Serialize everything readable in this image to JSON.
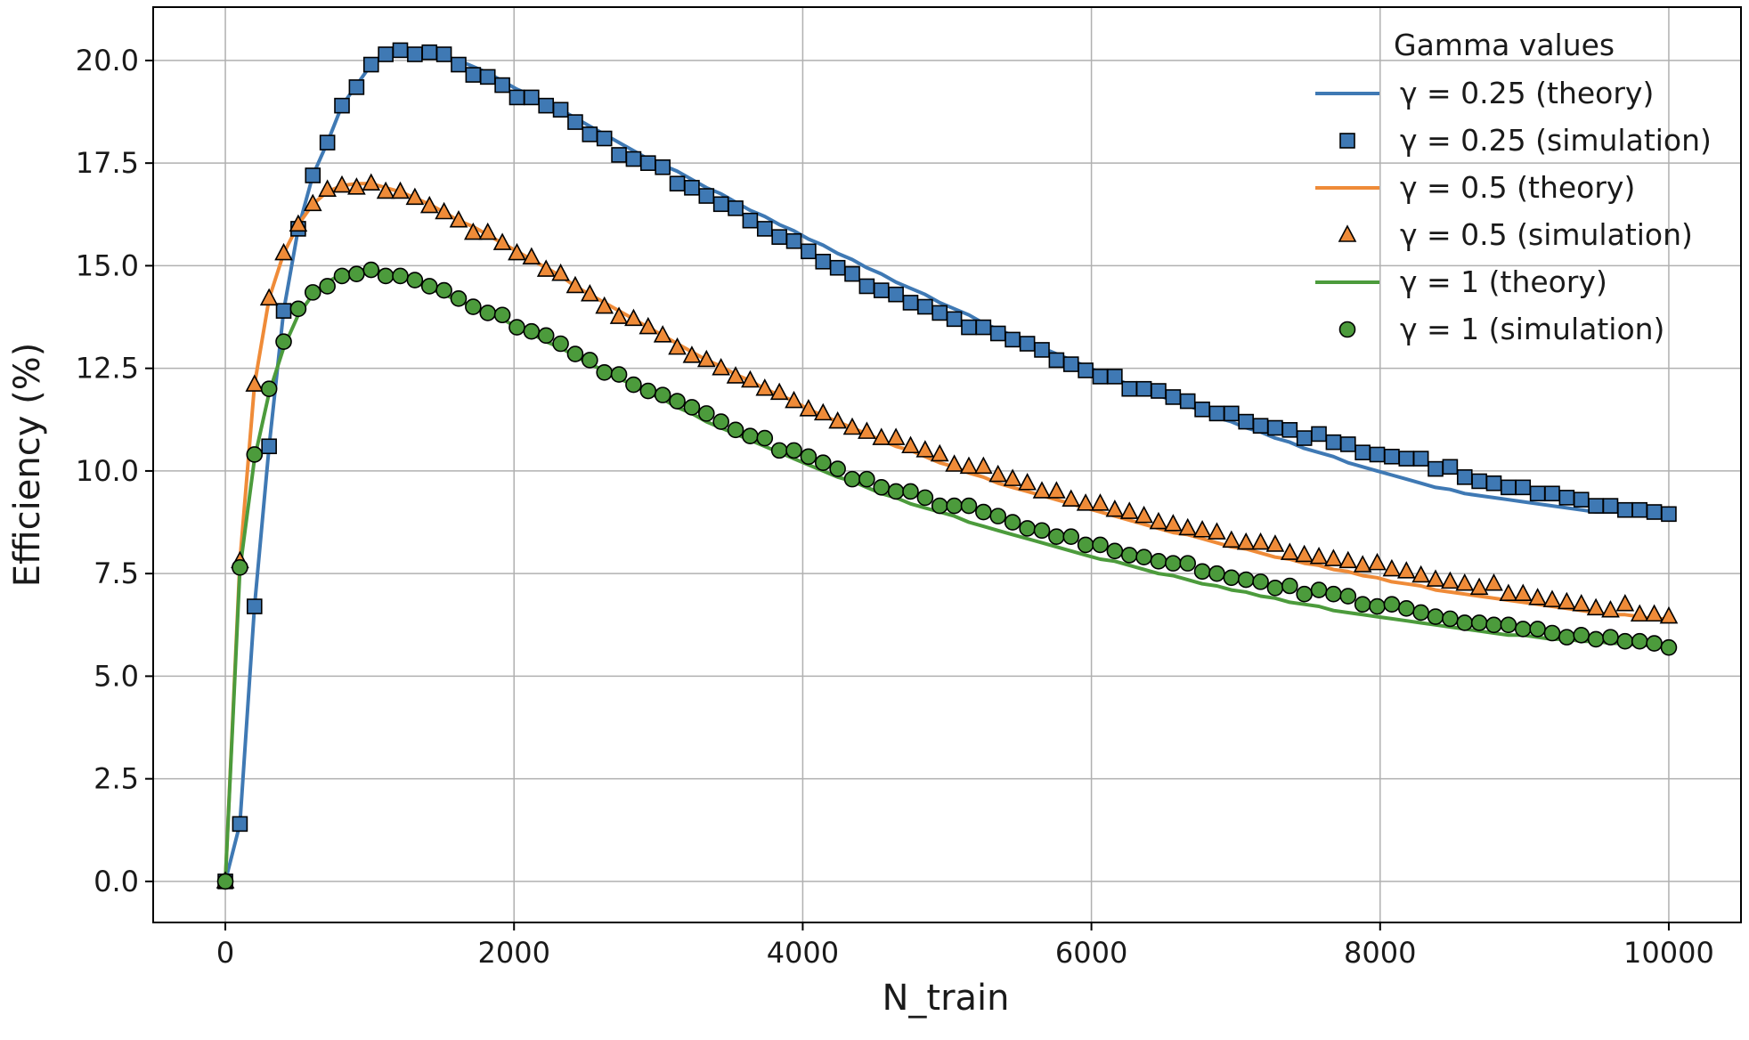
{
  "chart_data": {
    "type": "line",
    "title": "",
    "xlabel": "N_train",
    "ylabel": "Efficiency (%)",
    "xlim": [
      -500,
      10500
    ],
    "ylim": [
      -1.0,
      21.3
    ],
    "xticks": [
      0,
      2000,
      4000,
      6000,
      8000,
      10000
    ],
    "xtick_labels": [
      "0",
      "2000",
      "4000",
      "6000",
      "8000",
      "10000"
    ],
    "yticks": [
      0,
      2.5,
      5,
      7.5,
      10,
      12.5,
      15,
      17.5,
      20
    ],
    "ytick_labels": [
      "0.0",
      "2.5",
      "5.0",
      "7.5",
      "10.0",
      "12.5",
      "15.0",
      "17.5",
      "20.0"
    ],
    "grid": true,
    "legend": {
      "title": "Gamma values",
      "position": "top-right"
    },
    "x": [
      0,
      101,
      202,
      303,
      404,
      505,
      606,
      707,
      808,
      909,
      1010,
      1111,
      1212,
      1313,
      1414,
      1515,
      1616,
      1717,
      1818,
      1919,
      2020,
      2121,
      2222,
      2323,
      2424,
      2525,
      2626,
      2727,
      2828,
      2929,
      3030,
      3131,
      3232,
      3333,
      3434,
      3535,
      3636,
      3737,
      3838,
      3939,
      4040,
      4141,
      4242,
      4343,
      4444,
      4545,
      4646,
      4747,
      4848,
      4949,
      5050,
      5151,
      5252,
      5353,
      5454,
      5556,
      5657,
      5758,
      5859,
      5960,
      6061,
      6162,
      6263,
      6364,
      6465,
      6566,
      6667,
      6768,
      6869,
      6970,
      7071,
      7172,
      7273,
      7374,
      7475,
      7576,
      7677,
      7778,
      7879,
      7980,
      8081,
      8182,
      8283,
      8384,
      8485,
      8586,
      8687,
      8788,
      8889,
      8990,
      9091,
      9192,
      9293,
      9394,
      9495,
      9596,
      9697,
      9798,
      9899,
      10000
    ],
    "series": [
      {
        "name": "γ = 0.25 (theory)",
        "kind": "line",
        "color": "#3f79b4",
        "values": [
          0,
          1.4,
          6.7,
          10.6,
          13.9,
          15.9,
          17.2,
          18.0,
          18.9,
          19.4,
          19.9,
          20.1,
          20.2,
          20.25,
          20.2,
          20.1,
          20.0,
          19.85,
          19.7,
          19.5,
          19.3,
          19.15,
          18.95,
          18.8,
          18.6,
          18.4,
          18.2,
          18.0,
          17.8,
          17.6,
          17.45,
          17.3,
          17.1,
          16.9,
          16.75,
          16.55,
          16.35,
          16.2,
          16.0,
          15.85,
          15.65,
          15.5,
          15.3,
          15.15,
          14.95,
          14.8,
          14.6,
          14.45,
          14.3,
          14.1,
          13.95,
          13.8,
          13.6,
          13.45,
          13.3,
          13.15,
          13.0,
          12.85,
          12.7,
          12.55,
          12.4,
          12.25,
          12.1,
          12.0,
          11.85,
          11.7,
          11.6,
          11.45,
          11.3,
          11.2,
          11.05,
          10.95,
          10.8,
          10.7,
          10.55,
          10.45,
          10.35,
          10.2,
          10.1,
          10.0,
          9.9,
          9.8,
          9.7,
          9.6,
          9.55,
          9.45,
          9.4,
          9.35,
          9.3,
          9.25,
          9.2,
          9.15,
          9.1,
          9.05,
          9.0,
          9.0,
          9.0,
          9.0,
          9.0,
          9.0
        ]
      },
      {
        "name": "γ = 0.25 (simulation)",
        "kind": "marker",
        "marker": "square",
        "color": "#3f79b4",
        "values": [
          0,
          1.4,
          6.7,
          10.6,
          13.9,
          15.9,
          17.2,
          18.0,
          18.9,
          19.35,
          19.9,
          20.15,
          20.25,
          20.15,
          20.2,
          20.15,
          19.9,
          19.65,
          19.6,
          19.4,
          19.1,
          19.1,
          18.9,
          18.8,
          18.5,
          18.2,
          18.1,
          17.7,
          17.6,
          17.5,
          17.4,
          17.0,
          16.9,
          16.7,
          16.5,
          16.4,
          16.1,
          15.9,
          15.7,
          15.6,
          15.35,
          15.1,
          14.95,
          14.8,
          14.5,
          14.4,
          14.3,
          14.1,
          14.0,
          13.85,
          13.7,
          13.5,
          13.5,
          13.35,
          13.2,
          13.1,
          12.95,
          12.7,
          12.6,
          12.45,
          12.3,
          12.3,
          12.0,
          12.0,
          11.95,
          11.8,
          11.7,
          11.5,
          11.4,
          11.4,
          11.2,
          11.1,
          11.05,
          11.0,
          10.8,
          10.9,
          10.7,
          10.65,
          10.45,
          10.4,
          10.35,
          10.3,
          10.3,
          10.05,
          10.1,
          9.85,
          9.75,
          9.7,
          9.6,
          9.6,
          9.45,
          9.45,
          9.35,
          9.3,
          9.15,
          9.15,
          9.05,
          9.05,
          9.0,
          8.95
        ]
      },
      {
        "name": "γ = 0.5 (theory)",
        "kind": "line",
        "color": "#ef8b38",
        "values": [
          0,
          7.8,
          12.1,
          14.2,
          15.3,
          16.0,
          16.5,
          16.8,
          16.95,
          17.0,
          17.0,
          16.9,
          16.8,
          16.65,
          16.5,
          16.3,
          16.1,
          15.95,
          15.75,
          15.55,
          15.35,
          15.15,
          14.95,
          14.75,
          14.5,
          14.3,
          14.1,
          13.9,
          13.7,
          13.5,
          13.3,
          13.1,
          12.9,
          12.7,
          12.55,
          12.35,
          12.2,
          12.0,
          11.85,
          11.7,
          11.5,
          11.35,
          11.2,
          11.05,
          10.9,
          10.75,
          10.6,
          10.5,
          10.35,
          10.2,
          10.1,
          9.95,
          9.85,
          9.7,
          9.6,
          9.5,
          9.4,
          9.3,
          9.2,
          9.1,
          9.0,
          8.9,
          8.8,
          8.7,
          8.6,
          8.5,
          8.45,
          8.35,
          8.25,
          8.15,
          8.1,
          8.0,
          7.9,
          7.85,
          7.75,
          7.7,
          7.6,
          7.55,
          7.45,
          7.4,
          7.3,
          7.25,
          7.2,
          7.1,
          7.05,
          7.0,
          6.95,
          6.9,
          6.85,
          6.8,
          6.75,
          6.7,
          6.65,
          6.6,
          6.55,
          6.5,
          6.5,
          6.45,
          6.4,
          6.4
        ]
      },
      {
        "name": "γ = 0.5 (simulation)",
        "kind": "marker",
        "marker": "triangle",
        "color": "#ef8b38",
        "values": [
          0,
          7.8,
          12.1,
          14.2,
          15.3,
          16.0,
          16.5,
          16.85,
          16.95,
          16.9,
          17.0,
          16.8,
          16.8,
          16.65,
          16.45,
          16.3,
          16.1,
          15.8,
          15.8,
          15.55,
          15.3,
          15.2,
          14.9,
          14.8,
          14.5,
          14.3,
          14.0,
          13.75,
          13.7,
          13.5,
          13.3,
          13.0,
          12.8,
          12.7,
          12.5,
          12.3,
          12.2,
          12.0,
          11.9,
          11.7,
          11.5,
          11.4,
          11.2,
          11.05,
          10.95,
          10.8,
          10.8,
          10.6,
          10.5,
          10.4,
          10.15,
          10.1,
          10.1,
          9.9,
          9.8,
          9.7,
          9.5,
          9.5,
          9.3,
          9.2,
          9.2,
          9.05,
          9.0,
          8.9,
          8.75,
          8.7,
          8.6,
          8.55,
          8.5,
          8.3,
          8.25,
          8.25,
          8.2,
          8.0,
          7.95,
          7.9,
          7.85,
          7.8,
          7.7,
          7.75,
          7.6,
          7.55,
          7.45,
          7.35,
          7.3,
          7.25,
          7.15,
          7.25,
          7.0,
          7.0,
          6.9,
          6.85,
          6.8,
          6.75,
          6.65,
          6.6,
          6.75,
          6.5,
          6.5,
          6.45
        ]
      },
      {
        "name": "γ = 1 (theory)",
        "kind": "line",
        "color": "#4c9b3c",
        "values": [
          0,
          7.6,
          10.3,
          11.9,
          13.0,
          13.8,
          14.3,
          14.6,
          14.8,
          14.9,
          14.9,
          14.85,
          14.75,
          14.6,
          14.45,
          14.3,
          14.15,
          14.0,
          13.85,
          13.7,
          13.5,
          13.35,
          13.15,
          13.0,
          12.8,
          12.6,
          12.45,
          12.25,
          12.1,
          11.9,
          11.75,
          11.55,
          11.4,
          11.2,
          11.05,
          10.9,
          10.75,
          10.6,
          10.45,
          10.3,
          10.15,
          10.0,
          9.85,
          9.75,
          9.6,
          9.45,
          9.35,
          9.2,
          9.1,
          9.0,
          8.9,
          8.75,
          8.65,
          8.55,
          8.45,
          8.35,
          8.25,
          8.15,
          8.05,
          7.95,
          7.85,
          7.8,
          7.7,
          7.6,
          7.5,
          7.45,
          7.35,
          7.25,
          7.2,
          7.1,
          7.05,
          6.95,
          6.9,
          6.8,
          6.75,
          6.7,
          6.6,
          6.55,
          6.5,
          6.45,
          6.4,
          6.35,
          6.3,
          6.25,
          6.2,
          6.15,
          6.1,
          6.05,
          6.0,
          6.0,
          5.95,
          5.9,
          5.9,
          5.85,
          5.85,
          5.8,
          5.8,
          5.75,
          5.75,
          5.7
        ]
      },
      {
        "name": "γ = 1 (simulation)",
        "kind": "marker",
        "marker": "circle",
        "color": "#4c9b3c",
        "values": [
          0,
          7.65,
          10.4,
          12.0,
          13.15,
          13.95,
          14.35,
          14.5,
          14.75,
          14.8,
          14.9,
          14.75,
          14.75,
          14.65,
          14.5,
          14.4,
          14.2,
          14.0,
          13.85,
          13.8,
          13.5,
          13.4,
          13.3,
          13.1,
          12.85,
          12.7,
          12.4,
          12.35,
          12.1,
          11.95,
          11.85,
          11.7,
          11.55,
          11.4,
          11.2,
          11.0,
          10.85,
          10.8,
          10.5,
          10.5,
          10.35,
          10.2,
          10.05,
          9.8,
          9.8,
          9.6,
          9.5,
          9.5,
          9.35,
          9.15,
          9.15,
          9.15,
          9.0,
          8.9,
          8.75,
          8.6,
          8.55,
          8.4,
          8.4,
          8.2,
          8.2,
          8.05,
          7.95,
          7.9,
          7.8,
          7.75,
          7.75,
          7.55,
          7.5,
          7.4,
          7.35,
          7.3,
          7.15,
          7.2,
          7.0,
          7.1,
          7.0,
          6.95,
          6.75,
          6.7,
          6.75,
          6.65,
          6.55,
          6.45,
          6.4,
          6.3,
          6.3,
          6.25,
          6.25,
          6.15,
          6.15,
          6.05,
          5.95,
          6.0,
          5.9,
          5.95,
          5.85,
          5.85,
          5.8,
          5.7
        ]
      }
    ]
  }
}
